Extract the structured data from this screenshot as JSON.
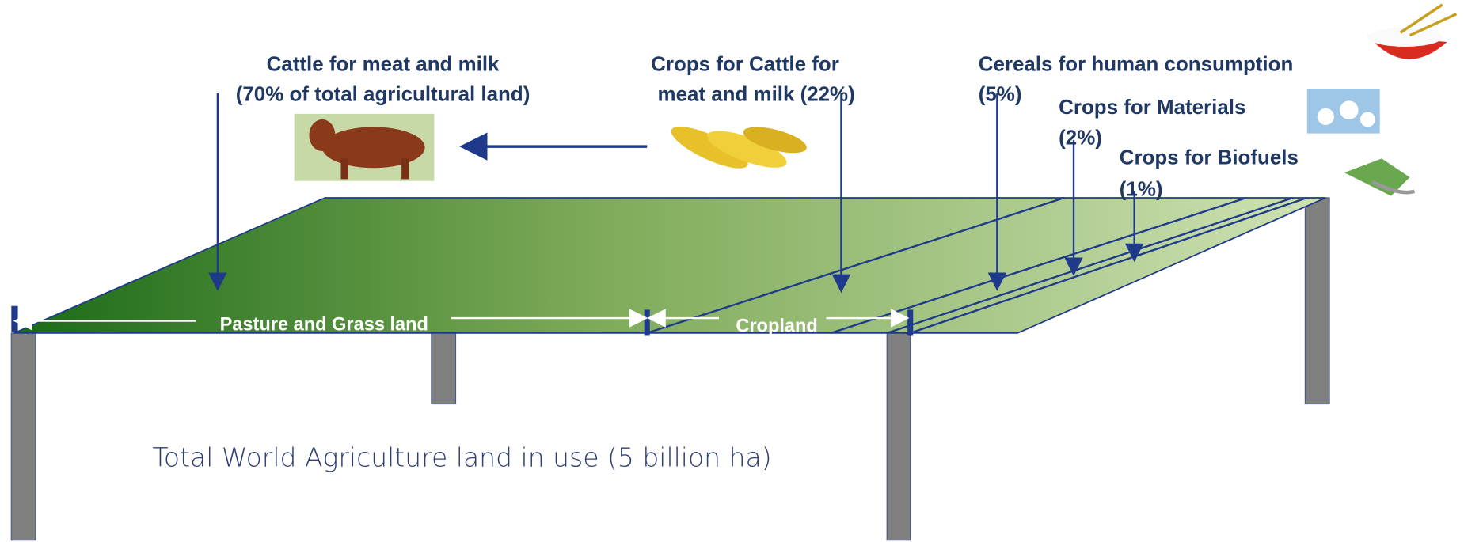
{
  "labels": {
    "cattle": {
      "line1": "Cattle for meat and milk",
      "line2": "(70% of total agricultural land)"
    },
    "crops_cattle": {
      "line1": "Crops for Cattle for",
      "line2": "meat and milk (22%)"
    },
    "cereals": {
      "line1": "Cereals for human consumption",
      "line2": "(5%)"
    },
    "materials": {
      "line1": "Crops  for Materials",
      "line2": "(2%)"
    },
    "biofuels": {
      "line1": "Crops  for Biofuels",
      "line2": "(1%)"
    }
  },
  "segments": {
    "pasture": "Pasture and Grass land",
    "cropland": "Cropland"
  },
  "caption": "Total World Agriculture  land in use (5 billion ha)"
}
